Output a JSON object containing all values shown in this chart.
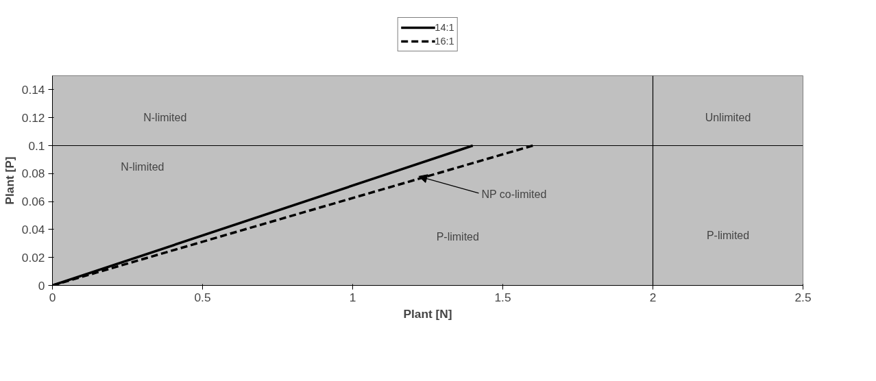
{
  "chart_data": {
    "type": "line",
    "xlabel": "Plant [N]",
    "ylabel": "Plant [P]",
    "xlim": [
      0,
      2.5
    ],
    "xticks": [
      0,
      0.5,
      1,
      1.5,
      2,
      2.5
    ],
    "ylim": [
      0,
      0.15
    ],
    "yticks": [
      0,
      0.02,
      0.04,
      0.06,
      0.08,
      0.1,
      0.12,
      0.14
    ],
    "series": [
      {
        "name": "14:1",
        "color": "#000000",
        "x": [
          0,
          1.4
        ],
        "values": [
          0,
          0.1
        ],
        "line_style": "solid"
      },
      {
        "name": "16:1",
        "color": "#000000",
        "x": [
          0,
          1.6
        ],
        "values": [
          0,
          0.1
        ],
        "line_style": "dashed"
      }
    ],
    "ref_lines": [
      {
        "axis": "y",
        "value": 0.1,
        "color": "#000000"
      },
      {
        "axis": "x",
        "value": 2,
        "color": "#000000"
      }
    ],
    "annotations": [
      "N-limited",
      "N-limited",
      "Unlimited",
      "P-limited",
      "P-limited",
      {
        "text": "NP co-limited",
        "x": 1.22,
        "y": 0.078
      }
    ],
    "legend": "top",
    "grid": false
  }
}
